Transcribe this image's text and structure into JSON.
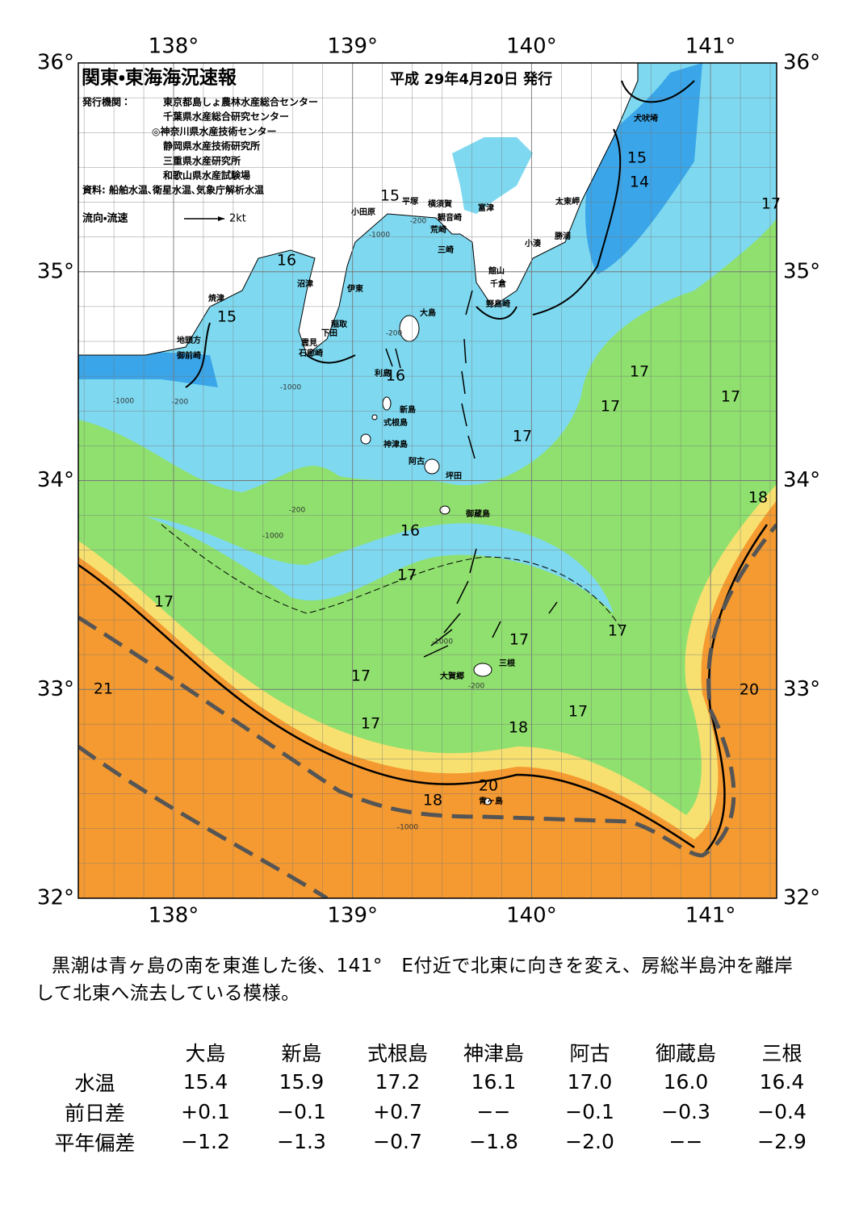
{
  "header": {
    "title": "関東・東海海況速報",
    "date": "平成 29年4月20日 発行",
    "publisher_label": "発行機関：",
    "publishers": [
      "東京都島しょ農林水産総合センター",
      "千葉県水産総合研究センター",
      "◎神奈川県水産技術センター",
      "静岡県水産技術研究所",
      "三重県水産研究所",
      "和歌山県水産試験場"
    ],
    "source": "資料: 船舶水温､衛星水温､気象庁解析水温",
    "legend_label": "流向・流速",
    "legend_scale": "2kt"
  },
  "axes": {
    "lon_labels": [
      "138°",
      "139°",
      "140°",
      "141°"
    ],
    "lat_labels": [
      "36°",
      "35°",
      "34°",
      "33°",
      "32°"
    ]
  },
  "place_names": [
    "犬吠埼",
    "太東岬",
    "勝浦",
    "小湊",
    "富津",
    "横須賀",
    "平塚",
    "観音崎",
    "荒崎",
    "小田原",
    "三崎",
    "館山",
    "千倉",
    "野島崎",
    "沼津",
    "伊東",
    "焼津",
    "大島",
    "稲取",
    "下田",
    "雲見",
    "石廊崎",
    "地頭方",
    "御前崎",
    "利島",
    "新島",
    "式根島",
    "神津島",
    "阿古",
    "坪田",
    "御蔵島",
    "三根",
    "大賀郷",
    "青ヶ島"
  ],
  "isotherm_labels": [
    "15",
    "16",
    "15",
    "16",
    "15",
    "14",
    "17",
    "17",
    "17",
    "17",
    "17",
    "18",
    "16",
    "17",
    "17",
    "17",
    "17",
    "21",
    "17",
    "20",
    "17",
    "17",
    "18",
    "20",
    "18"
  ],
  "depth_labels": [
    "-200",
    "-1000",
    "-200",
    "-1000",
    "-200",
    "-1000",
    "-200",
    "-1000",
    "-1000",
    "-200",
    "-1000"
  ],
  "description": "黒潮は青ヶ島の南を東進した後、141°　E付近で北東に向きを変え、房総半島沖を離岸して北東へ流去している模様。",
  "table": {
    "columns": [
      "大島",
      "新島",
      "式根島",
      "神津島",
      "阿古",
      "御蔵島",
      "三根"
    ],
    "rows": [
      [
        "水温",
        "15.4",
        "15.9",
        "17.2",
        "16.1",
        "17.0",
        "16.0",
        "16.4"
      ],
      [
        "前日差",
        "+0.1",
        "−0.1",
        "+0.7",
        "−−",
        "−0.1",
        "−0.3",
        "−0.4"
      ],
      [
        "平年偏差",
        "−1.2",
        "−1.3",
        "−0.7",
        "−1.8",
        "−2.0",
        "−−",
        "−2.9"
      ]
    ]
  }
}
